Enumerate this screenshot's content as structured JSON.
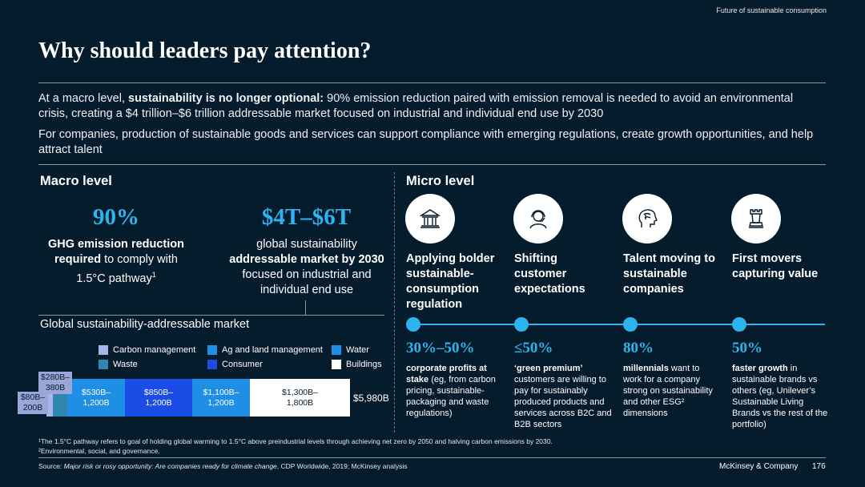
{
  "header": {
    "topright": "Future of sustainable consumption",
    "title": "Why should leaders pay attention?"
  },
  "intro": {
    "p1_prefix": "At a macro level, ",
    "p1_bold": "sustainability is no longer optional:",
    "p1_rest": " 90% emission reduction paired with emission removal is needed to avoid an environmental crisis, creating a $4 trillion–$6 trillion addressable market focused on industrial and individual end use by 2030",
    "p2": "For companies, production of sustainable goods and services can support compliance with emerging regulations, create growth opportunities, and help attract talent"
  },
  "macro": {
    "heading": "Macro level",
    "stat1": {
      "value": "90%",
      "bold1": "GHG emission reduction",
      "bold2": "required",
      "rest": " to comply with",
      "line3": "1.5°C pathway",
      "sup": "1"
    },
    "stat2": {
      "value": "$4T–$6T",
      "line1": "global sustainability",
      "bold": "addressable market by 2030",
      "rest": " focused on industrial and individual end use"
    },
    "market_title": "Global sustainability-addressable market",
    "legend": [
      {
        "label": "Carbon management",
        "color": "#aab6ea"
      },
      {
        "label": "Ag and land management",
        "color": "#1f8fe6"
      },
      {
        "label": "Water",
        "color": "#1f8fe6"
      },
      {
        "label": "Waste",
        "color": "#2f86b1"
      },
      {
        "label": "Consumer",
        "color": "#1c4ce6"
      },
      {
        "label": "Buildings",
        "color": "#ffffff"
      }
    ],
    "bars": {
      "carbon": "$80B–\n200B",
      "waste": "$280B–\n380B",
      "ag": "$530B–\n1,200B",
      "consumer": "$850B–\n1,200B",
      "water": "$1,100B–\n1,200B",
      "buildings": "$1,300B–\n1,800B",
      "total": "$5,980B"
    }
  },
  "micro": {
    "heading": "Micro level",
    "columns": [
      {
        "icon": "government-building-icon",
        "heading": "Applying bolder sustainable-consumption regulation",
        "value": "30%–50%",
        "bold": "corporate profits at stake",
        "rest": " (eg, from carbon pricing, sustainable-packaging and waste regulations)"
      },
      {
        "icon": "customer-headset-icon",
        "heading": "Shifting customer expectations",
        "value": "≤50%",
        "bold": "‘green premium’",
        "rest": " customers are willing to pay for sustainably produced products and services across B2C and B2B sectors"
      },
      {
        "icon": "brain-head-icon",
        "heading": "Talent moving to sustainable companies",
        "value": "80%",
        "bold": "millennials",
        "rest": " want to work for a company strong on sustainability and other ESG² dimensions"
      },
      {
        "icon": "chess-rook-icon",
        "heading": "First movers capturing value",
        "value": "50%",
        "bold": "faster growth",
        "rest": " in sustainable brands vs others (eg, Unilever’s Sustainable Living Brands vs the rest of the portfolio)"
      }
    ]
  },
  "footer": {
    "note1": "¹The 1.5°C pathway refers to goal of holding global warming to 1.5°C above preindustrial levels through achieving net zero by 2050 and halving carbon emissions by 2030.",
    "note2": "²Environmental, social, and governance.",
    "source_prefix": "Source: ",
    "source_italic": "Major risk or rosy opportunity: Are companies ready for climate change",
    "source_rest": ", CDP Worldwide, 2019; McKinsey analysis",
    "brand": "McKinsey & Company",
    "page": "176"
  }
}
